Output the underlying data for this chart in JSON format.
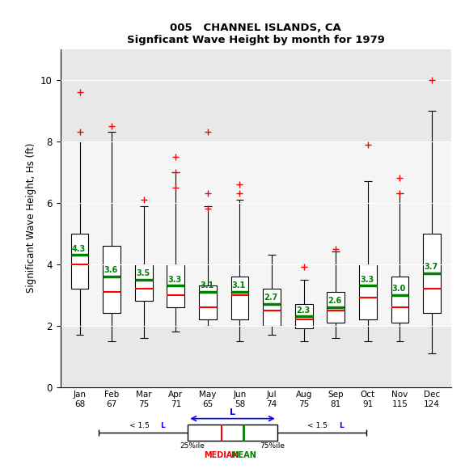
{
  "title1": "005   CHANNEL ISLANDS, CA",
  "title2": "Signficant Wave Height by month for 1979",
  "ylabel": "Significant Wave Height, Hs (ft)",
  "months": [
    "Jan",
    "Feb",
    "Mar",
    "Apr",
    "May",
    "Jun",
    "Jul",
    "Aug",
    "Sep",
    "Oct",
    "Nov",
    "Dec"
  ],
  "counts": [
    68,
    67,
    75,
    71,
    65,
    58,
    74,
    75,
    81,
    91,
    115,
    124
  ],
  "means": [
    4.3,
    3.6,
    3.5,
    3.3,
    3.1,
    3.1,
    2.7,
    2.3,
    2.6,
    3.3,
    3.0,
    3.7
  ],
  "medians": [
    4.0,
    3.1,
    3.2,
    3.0,
    2.6,
    3.0,
    2.5,
    2.2,
    2.5,
    2.9,
    2.6,
    3.2
  ],
  "q1": [
    3.2,
    2.4,
    2.8,
    2.6,
    2.2,
    2.2,
    2.0,
    1.9,
    2.1,
    2.2,
    2.1,
    2.4
  ],
  "q3": [
    5.0,
    4.6,
    4.0,
    4.0,
    3.3,
    3.6,
    3.2,
    2.7,
    3.1,
    4.0,
    3.6,
    5.0
  ],
  "whislo": [
    1.7,
    1.5,
    1.6,
    1.8,
    2.0,
    1.5,
    1.7,
    1.5,
    1.6,
    1.5,
    1.5,
    1.1
  ],
  "whishi": [
    8.0,
    8.3,
    5.9,
    7.0,
    5.9,
    6.1,
    4.3,
    3.5,
    4.4,
    6.7,
    6.3,
    9.0
  ],
  "fliers": [
    [
      9.6,
      8.3
    ],
    [
      8.5
    ],
    [
      6.1
    ],
    [
      7.5,
      7.0,
      6.5
    ],
    [
      8.3,
      6.3,
      5.8
    ],
    [
      6.6,
      6.3
    ],
    [],
    [
      3.9
    ],
    [
      4.5
    ],
    [
      7.9
    ],
    [
      6.8,
      6.3
    ],
    [
      10.0
    ]
  ],
  "band_lo": 2.0,
  "band_hi": 8.0,
  "ylim": [
    0,
    11
  ],
  "yticks": [
    0,
    2,
    4,
    6,
    8,
    10
  ],
  "bg_color": "#e8e8e8",
  "band_color": "#f5f5f5",
  "box_facecolor": "white",
  "median_color": "red",
  "mean_color": "green",
  "flier_color": "red",
  "whisker_color": "black",
  "box_edge_color": "black",
  "grid_color": "white"
}
